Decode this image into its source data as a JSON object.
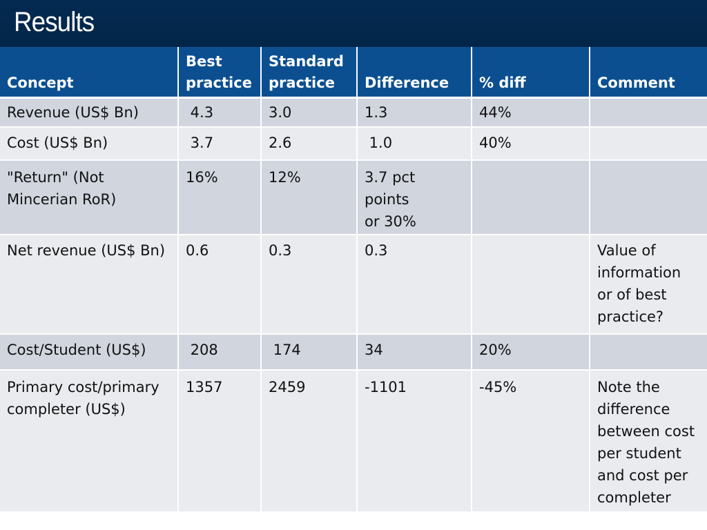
{
  "slide": {
    "title": "Results"
  },
  "table": {
    "headers": [
      "Concept",
      "Best\npractice",
      "Standard\npractice",
      "Difference",
      "% diff",
      "Comment"
    ],
    "rows": [
      [
        "Revenue (US$ Bn)",
        " 4.3",
        "3.0",
        "1.3",
        "44%",
        ""
      ],
      [
        "Cost (US$ Bn)",
        " 3.7",
        "2.6",
        " 1.0",
        "40%",
        ""
      ],
      [
        "\"Return\" (Not\nMincerian RoR)",
        "16%",
        "12%",
        "3.7 pct\npoints\nor 30%",
        "",
        ""
      ],
      [
        "Net revenue (US$ Bn)",
        "0.6",
        "0.3",
        "0.3",
        "",
        "Value of\ninformation\nor of best\npractice?"
      ],
      [
        "Cost/Student (US$)",
        " 208",
        " 174",
        "34",
        "20%",
        ""
      ],
      [
        "Primary cost/primary\ncompleter (US$)",
        "1357",
        "2459",
        "-1101",
        "-45%",
        "Note the\ndifference\nbetween cost\nper student\nand cost per\ncompleter"
      ]
    ]
  },
  "colors": {
    "title_bar": "#022648",
    "header_fill": "#0b4f91",
    "row_dark": "#d0d5de",
    "row_light": "#e9ebef"
  }
}
